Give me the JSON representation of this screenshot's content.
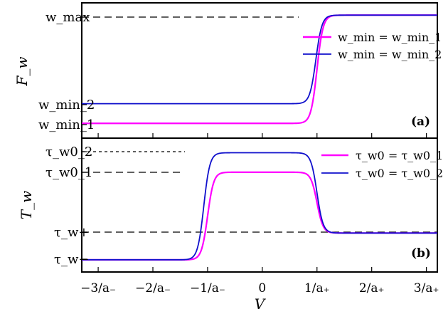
{
  "chart_data": [
    {
      "type": "line",
      "panel_label": "(a)",
      "ylabel": "F_w",
      "ytick_labels": [
        "w_max",
        "w_min_2",
        "w_min_1"
      ],
      "legend_position": "top-right",
      "series": [
        {
          "name": "w_min = w_min_1",
          "color": "#ff00ff",
          "low": 0.12,
          "high": 1.0,
          "edges": [
            {
              "at": 1.0,
              "dir": "up"
            }
          ]
        },
        {
          "name": "w_min = w_min_2",
          "color": "#1010cc",
          "low": 0.28,
          "high": 1.0,
          "edges": [
            {
              "at": 0.98,
              "dir": "up"
            }
          ]
        }
      ],
      "xlim": [
        -3.3,
        3.2
      ],
      "ylim": [
        0.0,
        1.1
      ]
    },
    {
      "type": "line",
      "panel_label": "(b)",
      "ylabel": "T_w",
      "ytick_labels": [
        "τ_w0_2",
        "τ_w0_1",
        "τ_w+",
        "τ_w−"
      ],
      "legend_position": "top-right",
      "series": [
        {
          "name": "τ_w0 = τ_w0_1",
          "color": "#ff00ff",
          "baseline": 0.0,
          "plateau": 0.72,
          "tail": 0.22,
          "edges": [
            {
              "at": -1.0,
              "dir": "up"
            },
            {
              "at": 1.0,
              "dir": "down"
            }
          ]
        },
        {
          "name": "τ_w0 = τ_w0_2",
          "color": "#1010cc",
          "baseline": 0.0,
          "plateau": 0.88,
          "tail": 0.22,
          "edges": [
            {
              "at": -1.07,
              "dir": "up"
            },
            {
              "at": 1.0,
              "dir": "down"
            }
          ]
        }
      ],
      "xlim": [
        -3.3,
        3.2
      ],
      "ylim": [
        -0.1,
        1.0
      ]
    }
  ],
  "x_axis": {
    "label": "V",
    "ticks": [
      {
        "value": -3,
        "label": "−3/a₋"
      },
      {
        "value": -2,
        "label": "−2/a₋"
      },
      {
        "value": -1,
        "label": "−1/a₋"
      },
      {
        "value": 0,
        "label": "0"
      },
      {
        "value": 1,
        "label": "1/a₊"
      },
      {
        "value": 2,
        "label": "2/a₊"
      },
      {
        "value": 3,
        "label": "3/a₊"
      }
    ]
  },
  "colors": {
    "magenta": "#ff00ff",
    "blue": "#1010cc"
  }
}
